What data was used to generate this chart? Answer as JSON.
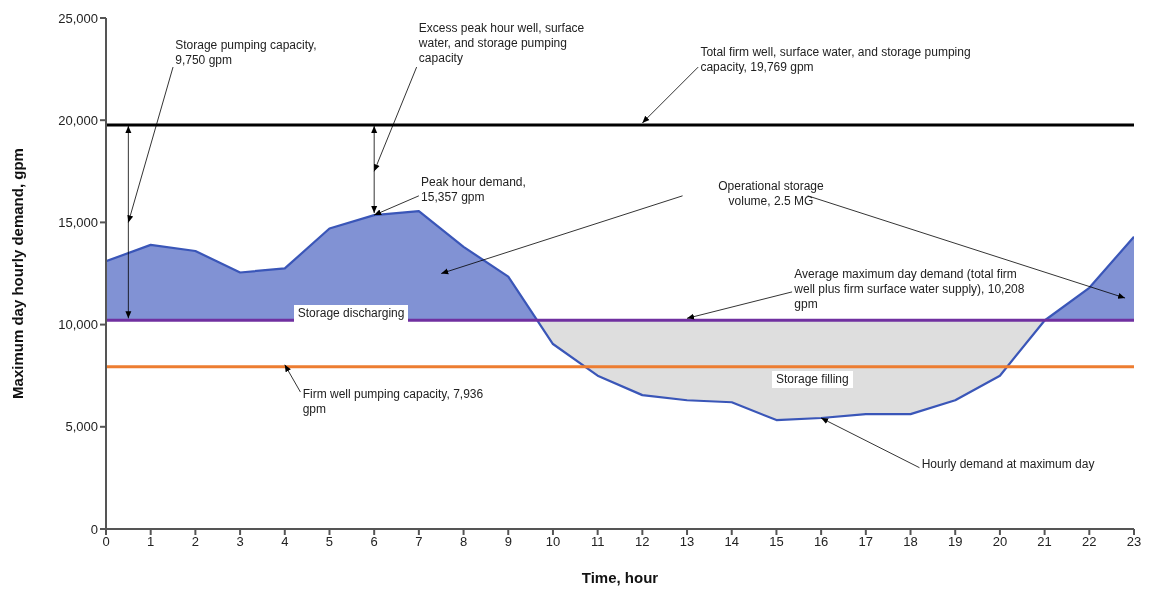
{
  "chart_data": {
    "type": "line",
    "xlabel": "Time, hour",
    "ylabel": "Maximum day hourly demand, gpm",
    "x": [
      0,
      1,
      2,
      3,
      4,
      5,
      6,
      7,
      8,
      9,
      10,
      11,
      12,
      13,
      14,
      15,
      16,
      17,
      18,
      19,
      20,
      21,
      22,
      23
    ],
    "series": [
      {
        "color": "#3a56b8",
        "values": [
          13100,
          13900,
          13600,
          12550,
          12750,
          14700,
          15357,
          15550,
          13800,
          12350,
          9050,
          7500,
          6550,
          6300,
          6200,
          5330,
          5430,
          5620,
          5620,
          6300,
          7500,
          10200,
          11800,
          14300
        ]
      }
    ],
    "xlim": [
      0,
      23
    ],
    "xticks": [
      0,
      1,
      2,
      3,
      4,
      5,
      6,
      7,
      8,
      9,
      10,
      11,
      12,
      13,
      14,
      15,
      16,
      17,
      18,
      19,
      20,
      21,
      22,
      23
    ],
    "ylim": [
      0,
      25000
    ],
    "yticks": [
      {
        "value": 0,
        "label": "0"
      },
      {
        "value": 5000,
        "label": "5,000"
      },
      {
        "value": 10000,
        "label": "10,000"
      },
      {
        "value": 15000,
        "label": "15,000"
      },
      {
        "value": 20000,
        "label": "20,000"
      },
      {
        "value": 25000,
        "label": "25,000"
      }
    ],
    "marker": "none",
    "line_style": "solid",
    "ref_lines": [
      {
        "axis": "y",
        "value": 19769,
        "label": "Total firm well, surface water, and storage pumping capacity, 19,769 gpm",
        "color": "#000000"
      },
      {
        "axis": "y",
        "value": 10208,
        "label": "Average maximum day demand (total firm well plus firm surface water supply), 10,208 gpm",
        "color": "#7030a0"
      },
      {
        "axis": "y",
        "value": 7936,
        "label": "Firm well pumping capacity, 7,936 gpm",
        "color": "#ed7d31"
      }
    ],
    "annotations": [
      "Storage pumping capacity, 9,750 gpm",
      "Excess peak hour well, surface water, and storage pumping capacity",
      {
        "text": "Peak hour demand, 15,357 gpm",
        "x": 6,
        "y": 15357
      },
      "Operational storage volume, 2.5 MG",
      "Storage discharging",
      "Storage filling",
      {
        "text": "Hourly demand at maximum day",
        "x": 16,
        "y": 5430
      }
    ]
  }
}
